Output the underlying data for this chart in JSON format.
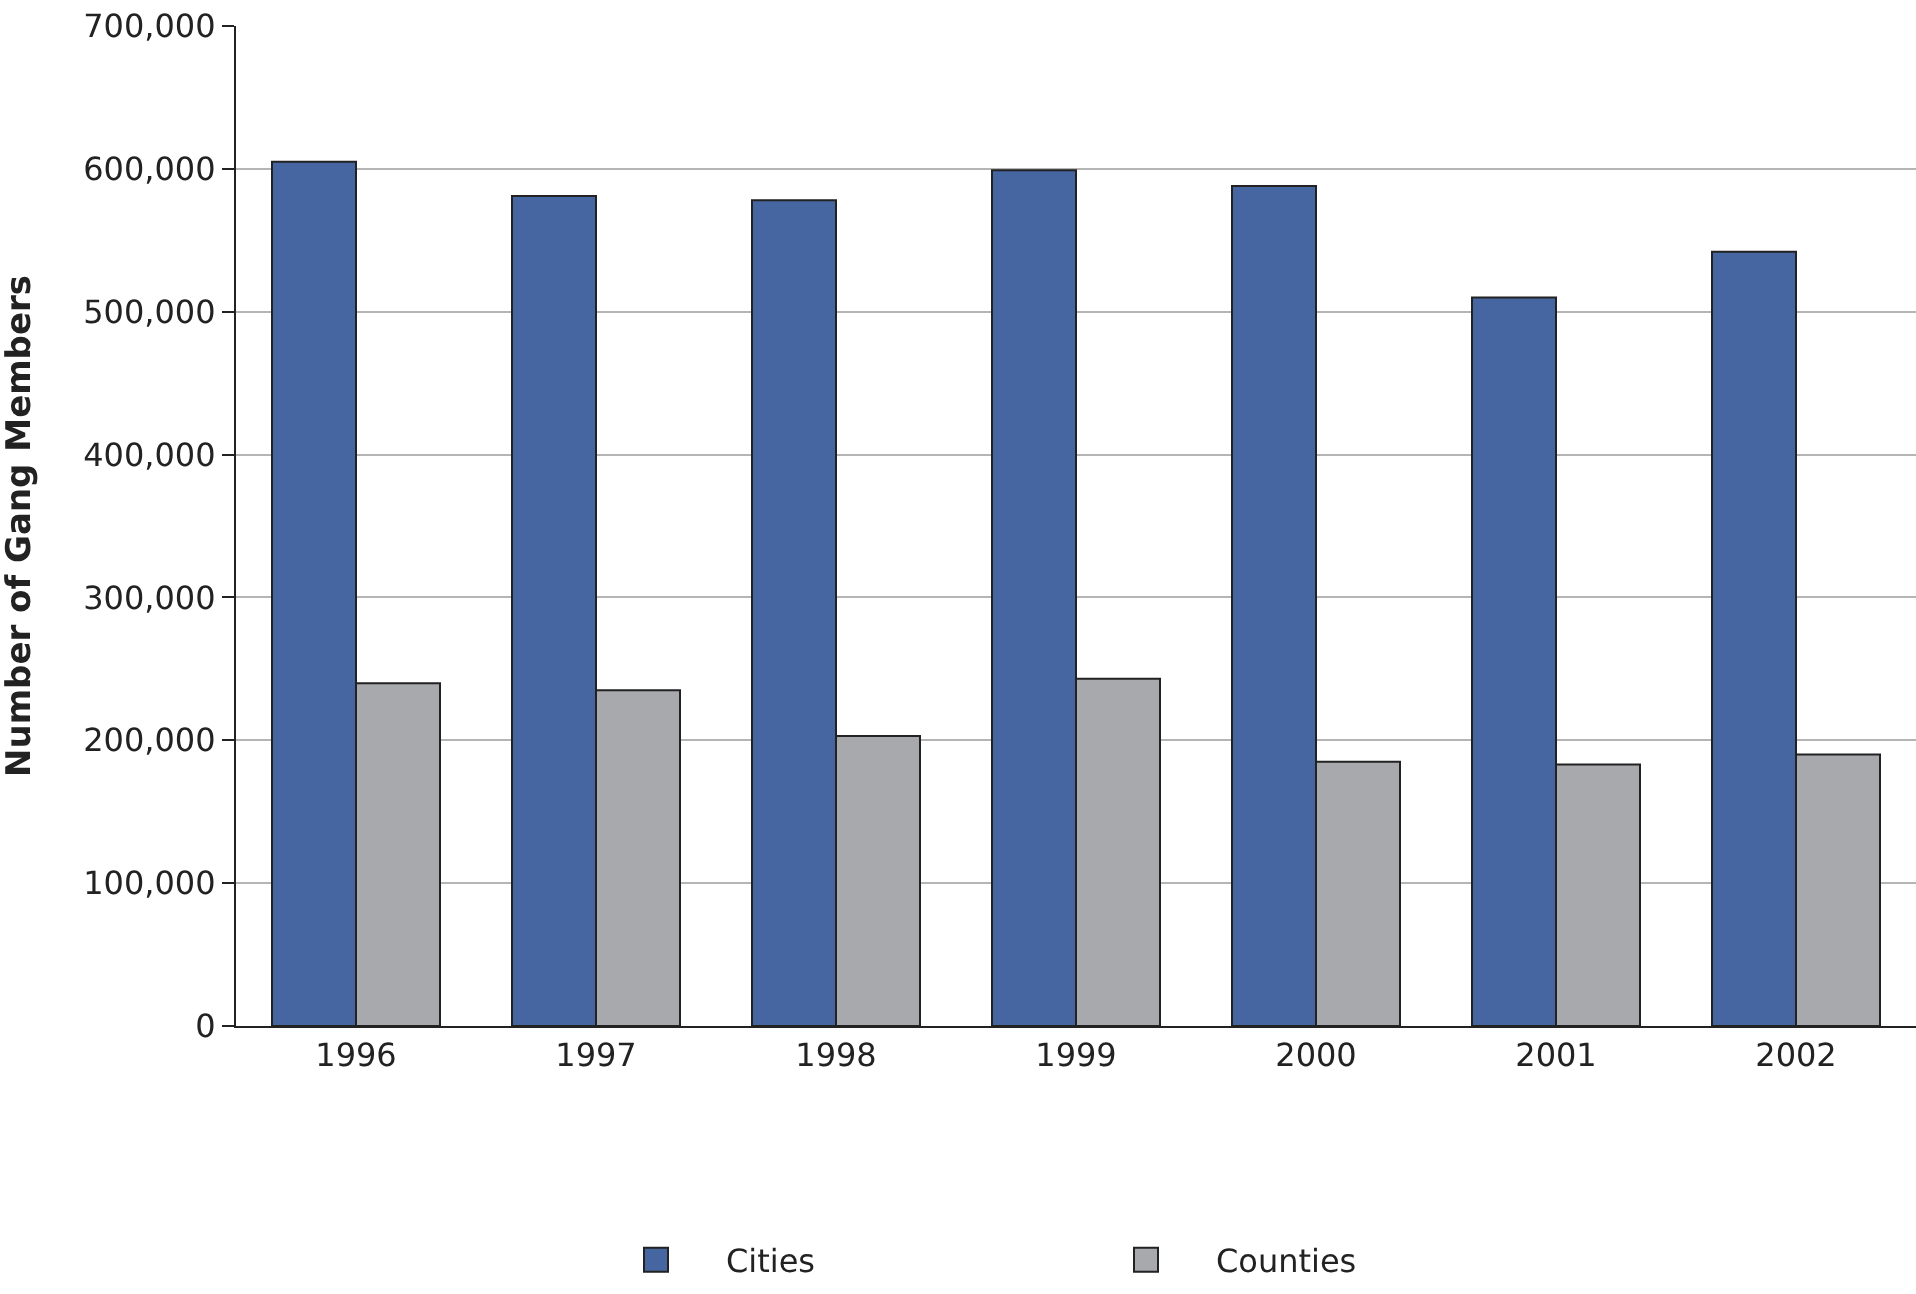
{
  "chart_data": {
    "type": "bar",
    "ylabel": "Number of Gang Members",
    "categories": [
      "1996",
      "1997",
      "1998",
      "1999",
      "2000",
      "2001",
      "2002"
    ],
    "series": [
      {
        "name": "Cities",
        "color": "#4566a0",
        "values": [
          605000,
          581000,
          578000,
          599000,
          588000,
          510000,
          542000
        ]
      },
      {
        "name": "Counties",
        "color": "#a7a9ac",
        "values": [
          240000,
          235000,
          203000,
          243000,
          185000,
          183000,
          190000
        ]
      }
    ],
    "ylim": [
      0,
      700000
    ],
    "yticks": [
      {
        "value": 0,
        "label": "0"
      },
      {
        "value": 100000,
        "label": "100,000"
      },
      {
        "value": 200000,
        "label": "200,000"
      },
      {
        "value": 300000,
        "label": "300,000"
      },
      {
        "value": 400000,
        "label": "400,000"
      },
      {
        "value": 500000,
        "label": "500,000"
      },
      {
        "value": 600000,
        "label": "600,000"
      },
      {
        "value": 700000,
        "label": "700,000"
      }
    ],
    "grid": "y",
    "legend": "bottom"
  }
}
